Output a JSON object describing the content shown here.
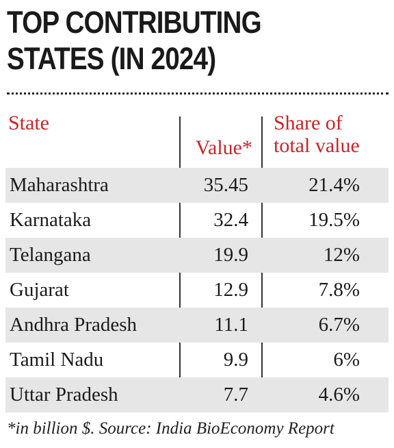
{
  "title": {
    "line1": "TOP CONTRIBUTING",
    "line2": "STATES (IN 2024)"
  },
  "chart_data": {
    "type": "table",
    "headers": {
      "state": "State",
      "value": "Value*",
      "share": "Share of total value"
    },
    "rows": [
      {
        "state": "Maharashtra",
        "value": "35.45",
        "share": "21.4%"
      },
      {
        "state": "Karnataka",
        "value": "32.4",
        "share": "19.5%"
      },
      {
        "state": "Telangana",
        "value": "19.9",
        "share": "12%"
      },
      {
        "state": "Gujarat",
        "value": "12.9",
        "share": "7.8%"
      },
      {
        "state": "Andhra Pradesh",
        "value": "11.1",
        "share": "6.7%"
      },
      {
        "state": "Tamil Nadu",
        "value": "9.9",
        "share": "6%"
      },
      {
        "state": "Uttar Pradesh",
        "value": "7.7",
        "share": "4.6%"
      }
    ]
  },
  "footnote": "*in billion $. Source: India BioEconomy Report",
  "colors": {
    "header_red": "#c8242b",
    "shaded_row": "#e6e6e6"
  }
}
